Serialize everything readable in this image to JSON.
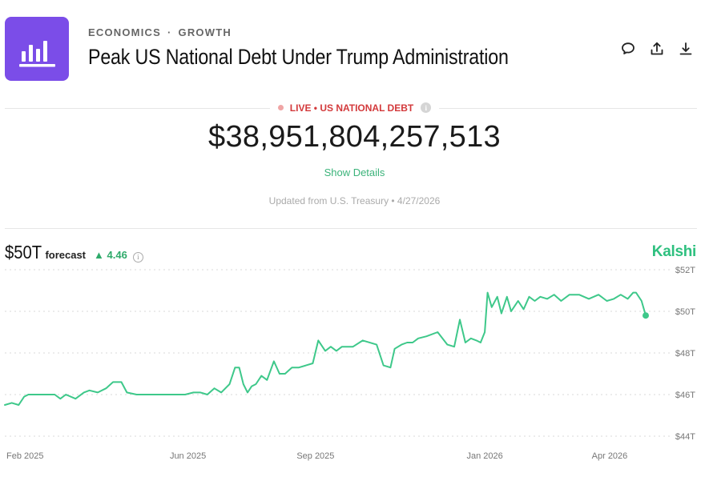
{
  "header": {
    "breadcrumb": [
      "ECONOMICS",
      "GROWTH"
    ],
    "breadcrumb_separator": "·",
    "title": "Peak US National Debt Under Trump Administration"
  },
  "actions": [
    {
      "name": "comment",
      "icon": "comment-icon"
    },
    {
      "name": "share",
      "icon": "share-upload-icon"
    },
    {
      "name": "download",
      "icon": "download-icon"
    }
  ],
  "live": {
    "label": "LIVE • US NATIONAL DEBT",
    "value": "$38,951,804,257,513",
    "show_details": "Show Details",
    "updated": "Updated from U.S. Treasury • 4/27/2026"
  },
  "forecast": {
    "value": "$50T",
    "label": "forecast",
    "change_arrow": "▲",
    "change": "4.46"
  },
  "brand": "Kalshi",
  "colors": {
    "accent": "#7b4de8",
    "line": "#3ec88a",
    "live": "#d3393b",
    "positive": "#2eaa6a"
  },
  "chart_data": {
    "type": "line",
    "ylim": [
      44,
      52
    ],
    "yticks": [
      "$52T",
      "$50T",
      "$48T",
      "$46T",
      "$44T"
    ],
    "ytick_values": [
      52,
      50,
      48,
      46,
      44
    ],
    "xticks": [
      "Feb 2025",
      "Jun 2025",
      "Sep 2025",
      "Jan 2026",
      "Apr 2026"
    ],
    "xtick_dates": [
      "2025-02-01",
      "2025-06-01",
      "2025-09-01",
      "2026-01-01",
      "2026-04-01"
    ],
    "series": [
      {
        "x": [
          "2025-01-20",
          "2025-01-25",
          "2025-01-30",
          "2025-02-03",
          "2025-02-06",
          "2025-02-15",
          "2025-02-25",
          "2025-03-01",
          "2025-03-05",
          "2025-03-12",
          "2025-03-18",
          "2025-03-22",
          "2025-03-28",
          "2025-04-03",
          "2025-04-08",
          "2025-04-14",
          "2025-04-18",
          "2025-04-25",
          "2025-04-30",
          "2025-05-10",
          "2025-05-20",
          "2025-05-30",
          "2025-06-05",
          "2025-06-10",
          "2025-06-15",
          "2025-06-20",
          "2025-06-25",
          "2025-07-01",
          "2025-07-05",
          "2025-07-08",
          "2025-07-11",
          "2025-07-14",
          "2025-07-17",
          "2025-07-20",
          "2025-07-24",
          "2025-07-28",
          "2025-08-02",
          "2025-08-06",
          "2025-08-10",
          "2025-08-15",
          "2025-08-20",
          "2025-08-25",
          "2025-08-30",
          "2025-09-03",
          "2025-09-08",
          "2025-09-12",
          "2025-09-16",
          "2025-09-20",
          "2025-09-28",
          "2025-10-05",
          "2025-10-15",
          "2025-10-20",
          "2025-10-25",
          "2025-10-28",
          "2025-11-02",
          "2025-11-06",
          "2025-11-10",
          "2025-11-14",
          "2025-11-20",
          "2025-11-28",
          "2025-12-05",
          "2025-12-10",
          "2025-12-14",
          "2025-12-18",
          "2025-12-22",
          "2025-12-26",
          "2025-12-29",
          "2026-01-01",
          "2026-01-03",
          "2026-01-06",
          "2026-01-10",
          "2026-01-13",
          "2026-01-17",
          "2026-01-20",
          "2026-01-25",
          "2026-01-29",
          "2026-02-02",
          "2026-02-06",
          "2026-02-10",
          "2026-02-15",
          "2026-02-20",
          "2026-02-25",
          "2026-03-03",
          "2026-03-10",
          "2026-03-17",
          "2026-03-24",
          "2026-03-30",
          "2026-04-04",
          "2026-04-09",
          "2026-04-14",
          "2026-04-18",
          "2026-04-20",
          "2026-04-24",
          "2026-04-27"
        ],
        "y": [
          45.5,
          45.6,
          45.5,
          45.9,
          46.0,
          46.0,
          46.0,
          45.8,
          46.0,
          45.8,
          46.1,
          46.2,
          46.1,
          46.3,
          46.6,
          46.6,
          46.1,
          46.0,
          46.0,
          46.0,
          46.0,
          46.0,
          46.1,
          46.1,
          46.0,
          46.3,
          46.1,
          46.5,
          47.3,
          47.3,
          46.5,
          46.1,
          46.4,
          46.5,
          46.9,
          46.7,
          47.6,
          47.0,
          47.0,
          47.3,
          47.3,
          47.4,
          47.5,
          48.6,
          48.1,
          48.3,
          48.1,
          48.3,
          48.3,
          48.6,
          48.4,
          47.4,
          47.3,
          48.2,
          48.4,
          48.5,
          48.5,
          48.7,
          48.8,
          49.0,
          48.4,
          48.3,
          49.6,
          48.5,
          48.7,
          48.6,
          48.5,
          49.0,
          50.9,
          50.2,
          50.7,
          49.9,
          50.7,
          50.0,
          50.5,
          50.1,
          50.7,
          50.5,
          50.7,
          50.6,
          50.8,
          50.5,
          50.8,
          50.8,
          50.6,
          50.8,
          50.5,
          50.6,
          50.8,
          50.6,
          50.9,
          50.9,
          50.5,
          49.8
        ]
      }
    ]
  }
}
